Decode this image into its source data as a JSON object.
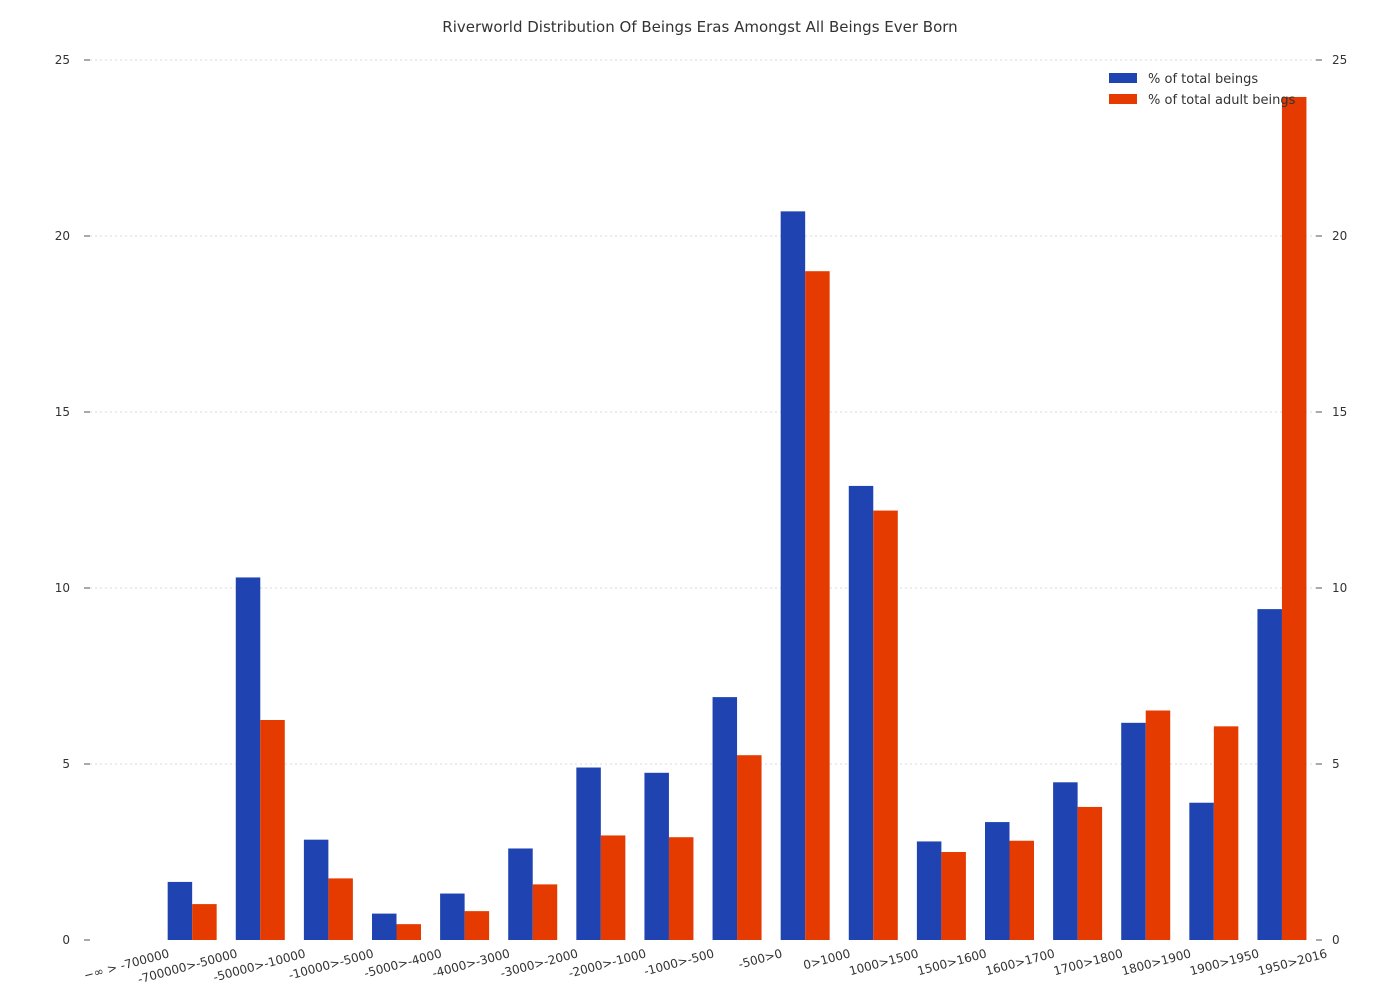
{
  "chart_data": {
    "type": "bar",
    "title": "Riverworld Distribution Of Beings Eras Amongst All Beings Ever Born",
    "xlabel": "",
    "ylabel": "",
    "ylim": [
      0,
      25
    ],
    "yticks": [
      0,
      5,
      10,
      15,
      20,
      25
    ],
    "grid": true,
    "legend_position": "top-right",
    "categories": [
      "−∞ > -700000",
      "-700000>-50000",
      "-50000>-10000",
      "-10000>-5000",
      "-5000>-4000",
      "-4000>-3000",
      "-3000>-2000",
      "-2000>-1000",
      "-1000>-500",
      "-500>0",
      "0>1000",
      "1000>1500",
      "1500>1600",
      "1600>1700",
      "1700>1800",
      "1800>1900",
      "1900>1950",
      "1950>2016"
    ],
    "series": [
      {
        "name": "% of total beings",
        "color": "#1f43b0",
        "values": [
          0,
          1.65,
          10.3,
          2.85,
          0.75,
          1.32,
          2.6,
          4.9,
          4.75,
          6.9,
          20.7,
          12.9,
          2.8,
          3.35,
          4.48,
          6.17,
          3.9,
          9.4
        ]
      },
      {
        "name": "% of total adult beings",
        "color": "#e53a00",
        "values": [
          0,
          1.02,
          6.25,
          1.75,
          0.45,
          0.82,
          1.58,
          2.97,
          2.92,
          5.25,
          19.0,
          12.2,
          2.5,
          2.82,
          3.78,
          6.52,
          6.07,
          23.95
        ]
      }
    ]
  }
}
